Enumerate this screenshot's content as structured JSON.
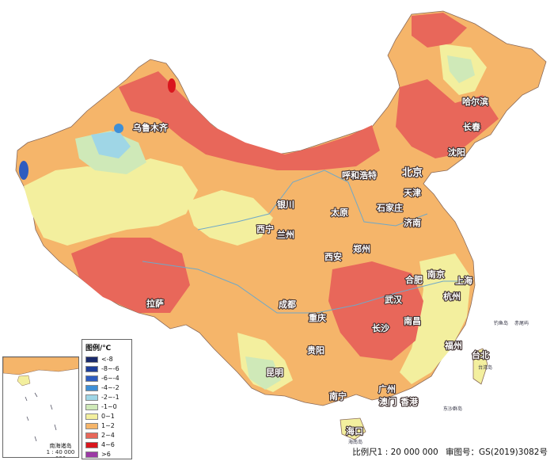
{
  "legend": {
    "title": "图例/℃",
    "items": [
      {
        "label": "<-8",
        "color": "#1b2a6b"
      },
      {
        "label": "-8~-6",
        "color": "#1f3f9a"
      },
      {
        "label": "-6~-4",
        "color": "#2e5cc0"
      },
      {
        "label": "-4~-2",
        "color": "#3f8fd6"
      },
      {
        "label": "-2~-1",
        "color": "#9fd6e6"
      },
      {
        "label": "-1~0",
        "color": "#cfe9b8"
      },
      {
        "label": "0~1",
        "color": "#f3ef9e"
      },
      {
        "label": "1~2",
        "color": "#f5b56a"
      },
      {
        "label": "2~4",
        "color": "#e8675a"
      },
      {
        "label": "4~6",
        "color": "#d9161d"
      },
      {
        "label": ">6",
        "color": "#9c3aa5"
      }
    ]
  },
  "cities": [
    {
      "name": "乌鲁木齐",
      "size": "mid"
    },
    {
      "name": "哈尔滨",
      "size": "mid"
    },
    {
      "name": "长春",
      "size": "mid"
    },
    {
      "name": "沈阳",
      "size": "mid"
    },
    {
      "name": "呼和浩特",
      "size": "mid"
    },
    {
      "name": "北京",
      "size": "big"
    },
    {
      "name": "天津",
      "size": "mid"
    },
    {
      "name": "银川",
      "size": "mid"
    },
    {
      "name": "太原",
      "size": "mid"
    },
    {
      "name": "石家庄",
      "size": "mid"
    },
    {
      "name": "济南",
      "size": "mid"
    },
    {
      "name": "西宁",
      "size": "mid"
    },
    {
      "name": "兰州",
      "size": "mid"
    },
    {
      "name": "郑州",
      "size": "mid"
    },
    {
      "name": "西安",
      "size": "mid"
    },
    {
      "name": "合肥",
      "size": "mid"
    },
    {
      "name": "南京",
      "size": "mid"
    },
    {
      "name": "上海",
      "size": "mid"
    },
    {
      "name": "拉萨",
      "size": "mid"
    },
    {
      "name": "成都",
      "size": "mid"
    },
    {
      "name": "武汉",
      "size": "mid"
    },
    {
      "name": "杭州",
      "size": "mid"
    },
    {
      "name": "重庆",
      "size": "mid"
    },
    {
      "name": "长沙",
      "size": "mid"
    },
    {
      "name": "南昌",
      "size": "mid"
    },
    {
      "name": "福州",
      "size": "mid"
    },
    {
      "name": "台北",
      "size": "mid"
    },
    {
      "name": "贵阳",
      "size": "mid"
    },
    {
      "name": "昆明",
      "size": "mid"
    },
    {
      "name": "南宁",
      "size": "mid"
    },
    {
      "name": "广州",
      "size": "mid"
    },
    {
      "name": "澳门",
      "size": "mid"
    },
    {
      "name": "香港",
      "size": "mid"
    },
    {
      "name": "海口",
      "size": "mid"
    }
  ],
  "small_labels": [
    "钓鱼岛",
    "赤尾屿",
    "台湾岛",
    "东沙群岛",
    "海南岛"
  ],
  "inset": {
    "caption": "南海诸岛",
    "scale": "1 : 40 000 000"
  },
  "scale_text": "比例尺1 : 20 000 000",
  "map_number": "审图号：GS(2019)3082号"
}
